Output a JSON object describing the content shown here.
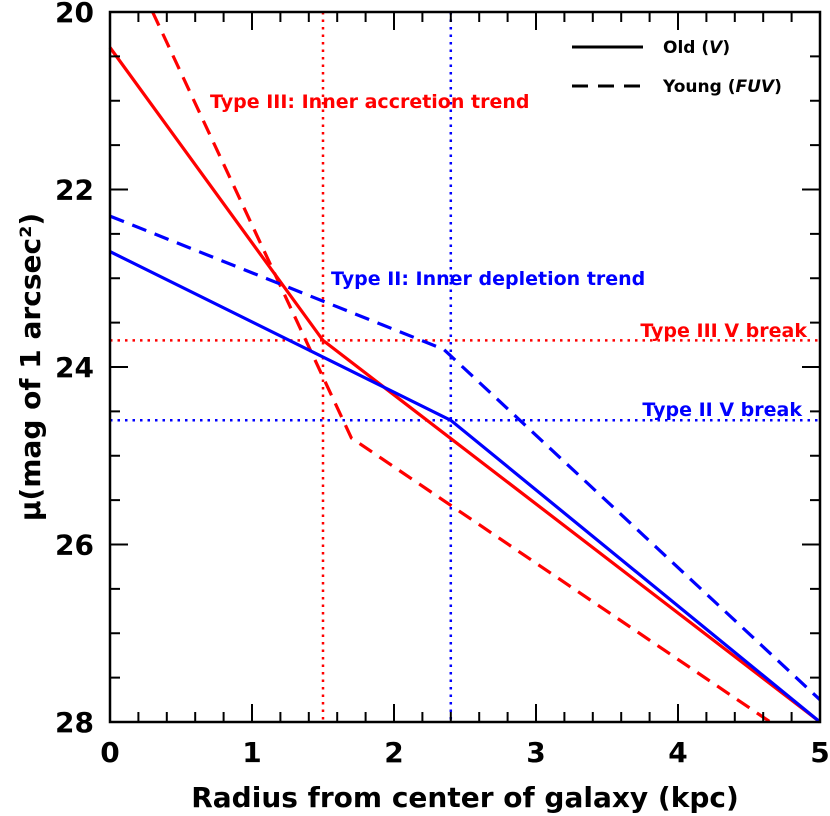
{
  "chart_data": {
    "type": "line",
    "title": "",
    "xlabel": "Radius from center of galaxy (kpc)",
    "ylabel": "μ(mag of 1 arcsec²)",
    "xlim": [
      0,
      5
    ],
    "ylim": [
      28,
      20
    ],
    "y_inverted": true,
    "x_major_ticks": [
      0,
      1,
      2,
      3,
      4,
      5
    ],
    "x_tick_labels": [
      "0",
      "1",
      "2",
      "3",
      "4",
      "5"
    ],
    "y_major_ticks": [
      20,
      22,
      24,
      26,
      28
    ],
    "y_tick_labels": [
      "20",
      "22",
      "24",
      "26",
      "28"
    ],
    "grid": false,
    "colors": {
      "type3": "#ff0000",
      "type2": "#0000ff",
      "axis": "#000000"
    },
    "series": [
      {
        "name": "Type III Old (V)",
        "color": "#ff0000",
        "style": "solid",
        "x": [
          0,
          1.5,
          5
        ],
        "y": [
          20.4,
          23.7,
          28.0
        ]
      },
      {
        "name": "Type III Young (FUV)",
        "color": "#ff0000",
        "style": "dashed",
        "x": [
          0.3,
          1.7,
          4.65
        ],
        "y": [
          20.0,
          24.8,
          28.0
        ]
      },
      {
        "name": "Type II Old (V)",
        "color": "#0000ff",
        "style": "solid",
        "x": [
          0,
          2.4,
          5
        ],
        "y": [
          22.7,
          24.6,
          28.0
        ]
      },
      {
        "name": "Type II Young (FUV)",
        "color": "#0000ff",
        "style": "dashed",
        "x": [
          0,
          2.35,
          5
        ],
        "y": [
          22.3,
          23.8,
          27.75
        ]
      }
    ],
    "reference_lines": [
      {
        "axis": "x",
        "value": 1.5,
        "color": "#ff0000",
        "style": "dotted"
      },
      {
        "axis": "x",
        "value": 2.4,
        "color": "#0000ff",
        "style": "dotted"
      },
      {
        "axis": "y",
        "value": 23.7,
        "color": "#ff0000",
        "style": "dotted",
        "label": "Type III V break"
      },
      {
        "axis": "y",
        "value": 24.6,
        "color": "#0000ff",
        "style": "dotted",
        "label": "Type II V break"
      }
    ],
    "annotations": [
      {
        "text": "Type III: Inner accretion trend",
        "color": "#ff0000"
      },
      {
        "text": "Type II: Inner depletion trend",
        "color": "#0000ff"
      }
    ],
    "legend": {
      "location": "top-right",
      "entries": [
        {
          "style": "solid",
          "label_main": "Old (",
          "label_em": "V",
          "label_end": ")"
        },
        {
          "style": "dashed",
          "label_main": "Young (",
          "label_em": "FUV",
          "label_end": ")"
        }
      ]
    }
  }
}
